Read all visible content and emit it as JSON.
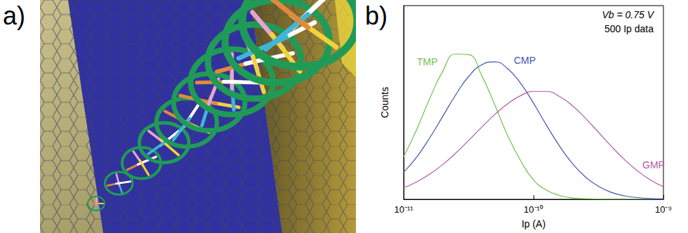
{
  "panel_labels": [
    "a)",
    "b)"
  ],
  "chart_data": {
    "type": "line",
    "xlabel": "Ip (A)",
    "ylabel": "Counts",
    "annotations": [
      "Vb = 0.75 V",
      "500 Ip data"
    ],
    "log": "x",
    "grid": false,
    "tick_labels": "x",
    "xlim": [
      1e-11,
      1e-09
    ],
    "xticks": [
      {
        "value": 1e-11,
        "label": "10⁻¹¹"
      },
      {
        "value": 1e-10,
        "label": "10⁻¹⁰"
      },
      {
        "value": 1e-09,
        "label": "10⁻⁹"
      }
    ],
    "ylim": [
      0,
      100
    ],
    "x": [
      1e-11,
      1.259e-11,
      1.585e-11,
      1.995e-11,
      2.512e-11,
      3.162e-11,
      3.981e-11,
      5.012e-11,
      6.31e-11,
      7.943e-11,
      1e-10,
      1.259e-10,
      1.585e-10,
      1.995e-10,
      2.512e-10,
      3.162e-10,
      3.981e-10,
      5.012e-10,
      6.31e-10,
      7.943e-10,
      1e-09
    ],
    "series": [
      {
        "name": "TMP",
        "color": "#72c04f",
        "values": [
          22,
          36,
          52,
          66,
          75,
          74.7,
          64,
          49,
          33,
          20,
          10,
          4.7,
          2,
          0.7,
          0.3,
          0.1,
          0,
          0,
          0,
          0,
          0
        ]
      },
      {
        "name": "CMP",
        "color": "#3f55b3",
        "values": [
          14,
          21.8,
          31.7,
          42.7,
          53.9,
          63.4,
          69.4,
          71,
          67.5,
          59.9,
          49.6,
          38.2,
          27.5,
          18.4,
          11.5,
          6.7,
          3.6,
          1.8,
          0.9,
          0.4,
          0.2
        ]
      },
      {
        "name": "GMP",
        "color": "#b25aa8",
        "values": [
          6,
          9,
          13,
          17.9,
          23.8,
          30.4,
          37.2,
          43.7,
          49.3,
          53.5,
          55.7,
          55.7,
          53.1,
          48.3,
          41.8,
          34.6,
          27.3,
          20.5,
          14.7,
          10,
          6.5
        ]
      }
    ]
  }
}
